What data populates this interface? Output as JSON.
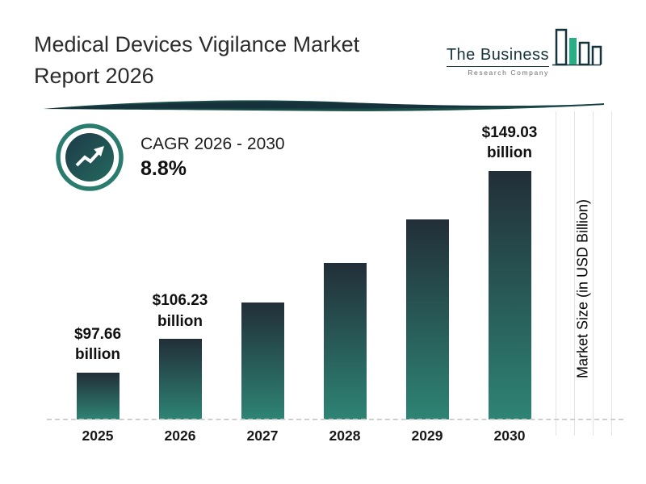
{
  "header": {
    "title_line1": "Medical Devices Vigilance Market",
    "title_line2": "Report 2026"
  },
  "logo": {
    "name": "The Business",
    "subtitle": "Research Company"
  },
  "cagr": {
    "label": "CAGR 2026 - 2030",
    "value": "8.8%"
  },
  "chart_data": {
    "type": "bar",
    "title": "Medical Devices Vigilance Market Report 2026",
    "categories": [
      "2025",
      "2026",
      "2027",
      "2028",
      "2029",
      "2030"
    ],
    "values": [
      97.66,
      106.23,
      115.6,
      125.7,
      136.8,
      149.03
    ],
    "bar_labels": [
      "$97.66 billion",
      "$106.23 billion",
      null,
      null,
      null,
      "$149.03 billion"
    ],
    "xlabel": "",
    "ylabel": "Market Size (in USD Billion)",
    "unit": "USD Billion",
    "legend": "none",
    "grid": "faint vertical lines right side, dashed baseline",
    "baseline_starts_at_zero": false
  },
  "colors": {
    "bar_top": "#222e38",
    "bar_bottom": "#2e8474",
    "accent_teal": "#2a7d6e",
    "divider_teal": "#1a4c47",
    "divider_navy": "#16323c",
    "icon_circle": "#1d3a47",
    "logo_green": "#27ae85",
    "logo_navy": "#16333d"
  }
}
